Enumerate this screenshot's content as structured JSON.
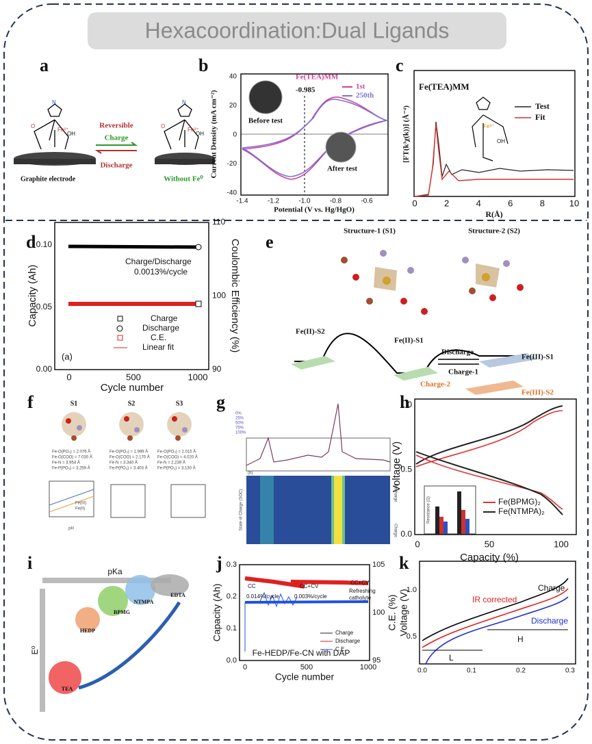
{
  "title": "Hexacoordination:Dual  Ligands",
  "a": {
    "label": "a",
    "reversible": "Reversible",
    "charge": "Charge",
    "discharge": "Discharge",
    "electrode": "Graphite electrode",
    "without": "Without Fe⁰",
    "fe_left": "Fe²⁺",
    "fe_right": "Fe³⁺",
    "oh": "OH",
    "n": "N",
    "o": "O"
  },
  "b": {
    "label": "b",
    "ylabel": "Current Density (mA cm⁻²)",
    "xlabel": "Potential (V vs. Hg/HgO)",
    "sample": "Fe(TEA)MM",
    "first": "1st",
    "last": "250th",
    "peak": "-0.985",
    "before": "Before test",
    "after": "After test",
    "xticks": [
      "-1.4",
      "-1.2",
      "-1.0",
      "-0.8",
      "-0.6"
    ],
    "yticks": [
      "40",
      "20",
      "0",
      "-20",
      "-40"
    ]
  },
  "c": {
    "label": "c",
    "ylabel": "[FT(k³χ(k))] (Å⁻⁴)",
    "xlabel": "R(Å)",
    "sample": "Fe(TEA)MM",
    "test": "Test",
    "fit": "Fit",
    "fe": "Fe³⁺",
    "oh": "OH",
    "xticks": [
      "0",
      "2",
      "4",
      "6",
      "8",
      "10"
    ]
  },
  "d": {
    "label": "d",
    "ylabel": "Capacity (Ah)",
    "y2label": "Coulombic Efficiency (%)",
    "xlabel": "Cycle number",
    "note1": "Charge/Discharge",
    "note2": "0.0013%/cycle",
    "sub": "(a)",
    "legend": [
      "Charge",
      "Discharge",
      "C.E.",
      "Linear fit"
    ],
    "xticks": [
      "0",
      "500",
      "1000"
    ],
    "yticks": [
      "0.00",
      "0.05",
      "0.10"
    ],
    "y2ticks": [
      "90",
      "100",
      "110"
    ]
  },
  "e": {
    "label": "e",
    "s1": "Structure-1 (S1)",
    "s2": "Structure-2 (S2)",
    "fe2s2": "Fe(II)-S2",
    "fe2s1": "Fe(II)-S1",
    "discharge": "Discharge",
    "charge1": "Charge-1",
    "charge2": "Charge-2",
    "fe3s1": "Fe(III)-S1",
    "fe3s2": "Fe(III)-S2"
  },
  "f": {
    "label": "f",
    "names": [
      "S1",
      "S2",
      "S3"
    ],
    "bonds": [
      [
        "Fe-O(PO₃) = 2.076 Å",
        "Fe-O(COO) = 7.030 Å",
        "Fe-N = 3.954 Å",
        "Fe-P(PO₃) = 3.259 Å"
      ],
      [
        "Fe-O(PO₃) = 1.999 Å",
        "Fe-O(COO) = 2.170 Å",
        "Fe-N = 3.340 Å",
        "Fe-P(PO₃) = 3.403 Å"
      ],
      [
        "Fe-O(PO₃) = 2.015 Å",
        "Fe-O(COO) = 4.020 Å",
        "Fe-N = 2.239 Å",
        "Fe-P(PO₃) = 3.130 Å"
      ]
    ],
    "legend": [
      "Fe(III)",
      "Fe(II)"
    ],
    "xlabel": "pH"
  },
  "g": {
    "label": "g",
    "sub": "(b)",
    "ylabel": "State of Charge (SOC)",
    "discharge": "Discharge",
    "charge": "Charge",
    "soc": [
      "0%",
      "25%",
      "50%",
      "75%",
      "100%"
    ]
  },
  "h": {
    "label": "h",
    "ylabel": "Voltage (V)",
    "xlabel": "Capacity (%)",
    "legend": [
      "Fe(BPMG)₂",
      "Fe(NTMPA)₂"
    ],
    "inset_y": "Resistance (Ω)",
    "xticks": [
      "0",
      "50",
      "100"
    ],
    "yticks": [
      "0.0",
      "0.5",
      "1.0"
    ]
  },
  "i": {
    "label": "i",
    "pka": "pKa",
    "e0": "E⁰",
    "ligands": [
      "TEA",
      "HEDP",
      "BPMG",
      "NTMPA",
      "EDTA"
    ]
  },
  "j": {
    "label": "j",
    "ylabel": "Capacity (Ah)",
    "y2label": "C.E. (%)",
    "xlabel": "Cycle number",
    "cc": "CC",
    "cccv": "CC+CV",
    "rate1": "0.014%/cycle",
    "rate2": "0.003%/cycle",
    "cccv2": "CC+CV",
    "refresh1": "Refreshing",
    "refresh2": "catholyte",
    "legend": [
      "Charge",
      "Discharge",
      "C.E."
    ],
    "system": "Fe-HEDP/Fe-CN with DAP",
    "xticks": [
      "0",
      "500",
      "1000"
    ],
    "yticks": [
      "0.0",
      "0.1",
      "0.2",
      "0.3"
    ],
    "y2ticks": [
      "95",
      "100",
      "105"
    ]
  },
  "k": {
    "label": "k",
    "ylabel": "Voltage (V)",
    "charge": "Charge",
    "ir": "IR corrected",
    "discharge": "Discharge",
    "h": "H",
    "l": "L",
    "xticks": [
      "0.0",
      "0.1",
      "0.2",
      "0.3"
    ],
    "yticks": [
      "0.5",
      "1.0"
    ]
  }
}
